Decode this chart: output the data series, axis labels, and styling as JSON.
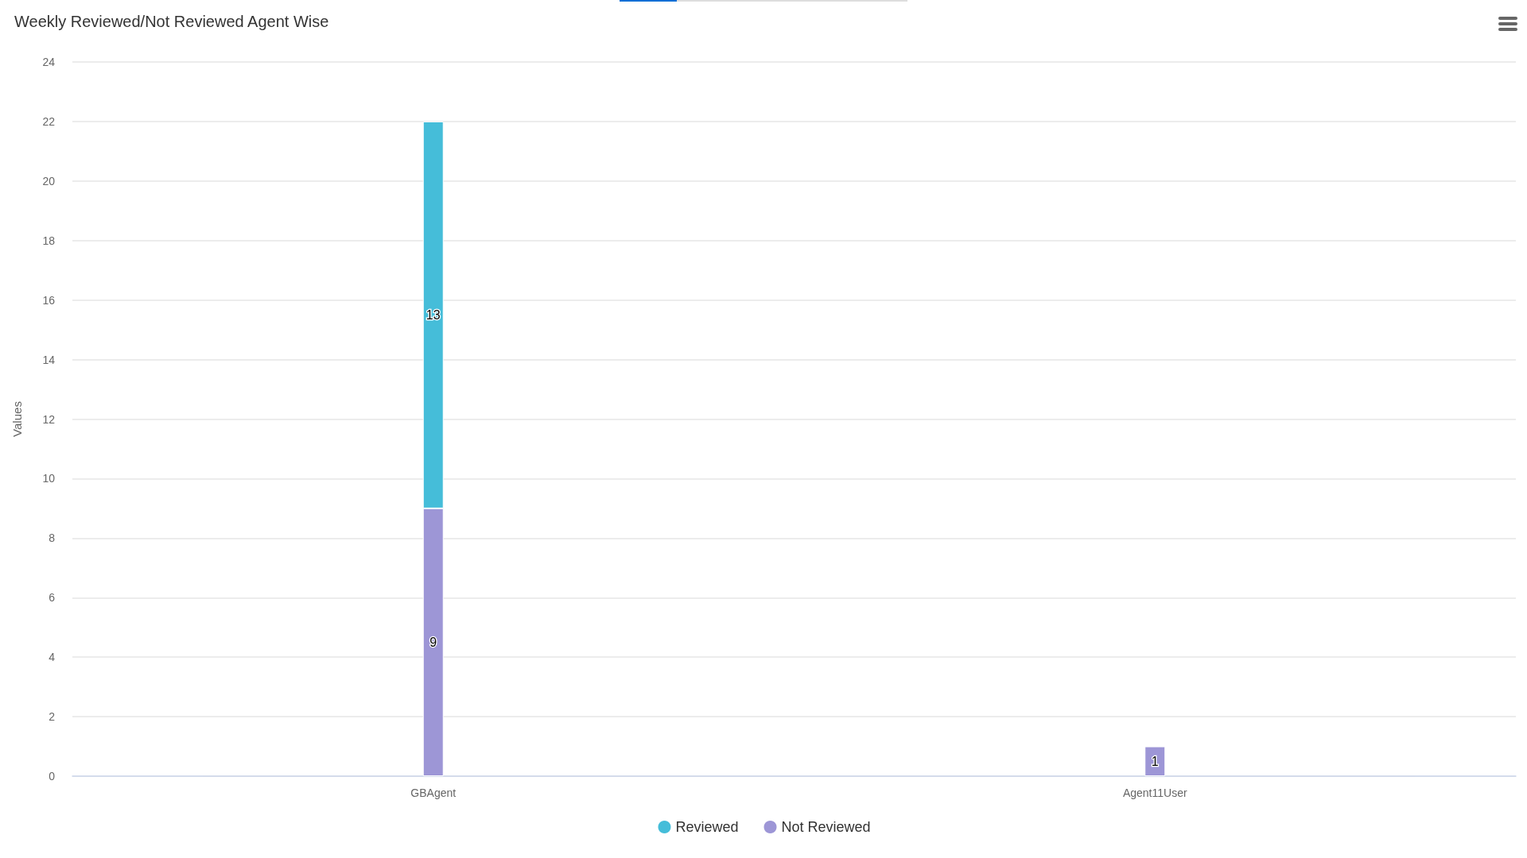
{
  "chart_data": {
    "type": "bar",
    "title": "Weekly Reviewed/Not Reviewed Agent Wise",
    "ylabel": "Values",
    "categories": [
      "GBAgent",
      "Agent11User"
    ],
    "series": [
      {
        "name": "Not Reviewed",
        "color": "#9d96d6",
        "values": [
          9,
          1
        ]
      },
      {
        "name": "Reviewed",
        "color": "#45bdd9",
        "values": [
          13,
          null
        ]
      }
    ],
    "stacked": true,
    "ylim": [
      0,
      24
    ],
    "yticks": [
      0,
      2,
      4,
      6,
      8,
      10,
      12,
      14,
      16,
      18,
      20,
      22,
      24
    ],
    "grid": "y",
    "legend": "bottom",
    "data_labels": true
  }
}
